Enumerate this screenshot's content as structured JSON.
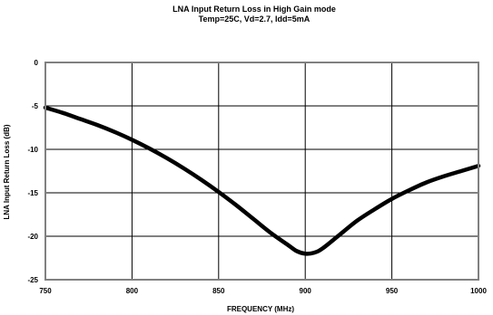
{
  "chart_data": {
    "type": "line",
    "title": "LNA Input Return Loss in High Gain mode",
    "subtitle": "Temp=25C, Vd=2.7, Idd=5mA",
    "xlabel": "FREQUENCY (MHz)",
    "ylabel": "LNA Input Return Loss (dB)",
    "xlim": [
      750,
      1000
    ],
    "ylim": [
      -25,
      0
    ],
    "x_ticks": [
      750,
      800,
      850,
      900,
      950,
      1000
    ],
    "y_ticks": [
      0,
      -5,
      -10,
      -15,
      -20,
      -25
    ],
    "grid": true,
    "series": [
      {
        "x": [
          750,
          760,
          770,
          780,
          790,
          800,
          810,
          820,
          830,
          840,
          850,
          860,
          870,
          880,
          890,
          895,
          900,
          905,
          910,
          920,
          930,
          940,
          950,
          960,
          970,
          980,
          990,
          1000
        ],
        "values": [
          -5.2,
          -5.8,
          -6.5,
          -7.2,
          -8.0,
          -8.9,
          -9.9,
          -11.0,
          -12.2,
          -13.5,
          -14.9,
          -16.4,
          -18.0,
          -19.6,
          -21.0,
          -21.7,
          -22.0,
          -21.9,
          -21.4,
          -19.8,
          -18.2,
          -16.9,
          -15.7,
          -14.7,
          -13.8,
          -13.1,
          -12.5,
          -11.9
        ],
        "color": "#000000"
      }
    ]
  }
}
